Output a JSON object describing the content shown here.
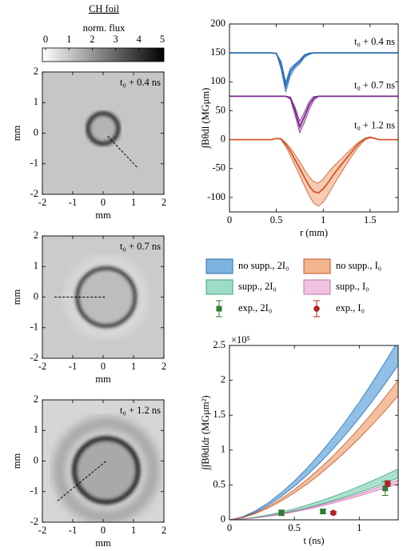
{
  "chart_data": [
    {
      "type": "colorbar",
      "title": "CH foil",
      "label": "norm. flux",
      "lim": [
        0,
        5
      ],
      "ticks": [
        0,
        1,
        2,
        3,
        4,
        5
      ]
    },
    {
      "type": "image",
      "xlim": [
        -2,
        2
      ],
      "ylim": [
        -2,
        2
      ],
      "xticks": [
        -2,
        -1,
        0,
        1,
        2
      ],
      "yticks": [
        -2,
        -1,
        0,
        1,
        2
      ],
      "xlabel": "mm",
      "ylabel": "mm",
      "annotation": "t₀ + 0.4 ns"
    },
    {
      "type": "image",
      "xlim": [
        -2,
        2
      ],
      "ylim": [
        -2,
        2
      ],
      "xticks": [
        -2,
        -1,
        0,
        1,
        2
      ],
      "yticks": [
        -2,
        -1,
        0,
        1,
        2
      ],
      "xlabel": "mm",
      "ylabel": "mm",
      "annotation": "t₀ + 0.7 ns"
    },
    {
      "type": "image",
      "xlim": [
        -2,
        2
      ],
      "ylim": [
        -2,
        2
      ],
      "xticks": [
        -2,
        -1,
        0,
        1,
        2
      ],
      "yticks": [
        -2,
        -1,
        0,
        1,
        2
      ],
      "xlabel": "mm",
      "ylabel": "mm",
      "annotation": "t₀ + 1.2 ns"
    },
    {
      "type": "line",
      "xlabel": "r (mm)",
      "ylabel": "∫Bθdl (MGμm)",
      "xlim": [
        0,
        1.8
      ],
      "ylim": [
        -125,
        200
      ],
      "xticks": [
        0,
        0.5,
        1,
        1.5
      ],
      "yticks": [
        -100,
        -50,
        0,
        50,
        100,
        150,
        200
      ],
      "x": [
        0,
        0.05,
        0.1,
        0.15,
        0.2,
        0.25,
        0.3,
        0.35,
        0.4,
        0.45,
        0.5,
        0.55,
        0.6,
        0.65,
        0.7,
        0.75,
        0.8,
        0.85,
        0.9,
        0.95,
        1,
        1.05,
        1.1,
        1.15,
        1.2,
        1.25,
        1.3,
        1.35,
        1.4,
        1.45,
        1.5,
        1.55,
        1.6,
        1.65,
        1.7,
        1.75,
        1.8
      ],
      "series": [
        {
          "name": "t₀ + 0.4 ns",
          "color": "#2a6db5",
          "band_color": "#9cc3e6",
          "values": [
            150,
            150,
            150,
            150,
            150,
            150,
            150,
            150,
            150,
            150,
            149,
            130,
            92,
            118,
            128,
            135,
            145,
            149,
            150,
            150,
            150,
            150,
            150,
            150,
            150,
            150,
            150,
            150,
            150,
            150,
            150,
            150,
            150,
            150,
            150,
            150,
            150
          ],
          "lower": [
            150,
            150,
            150,
            150,
            150,
            150,
            150,
            150,
            150,
            150,
            149,
            122,
            82,
            110,
            124,
            131,
            142,
            147,
            150,
            150,
            150,
            150,
            150,
            150,
            150,
            150,
            150,
            150,
            150,
            150,
            150,
            150,
            150,
            150,
            150,
            150,
            150
          ],
          "upper": [
            150,
            150,
            150,
            150,
            150,
            150,
            150,
            150,
            150,
            150,
            149,
            136,
            100,
            124,
            131,
            138,
            147,
            150,
            150,
            150,
            150,
            150,
            150,
            150,
            150,
            150,
            150,
            150,
            150,
            150,
            150,
            150,
            150,
            150,
            150,
            150,
            150
          ]
        },
        {
          "name": "t₀ + 0.7 ns",
          "color": "#7a2a8c",
          "band_color": "#e0b5dc",
          "values": [
            75,
            75,
            75,
            75,
            75,
            75,
            75,
            75,
            75,
            75,
            75,
            75,
            75,
            72,
            50,
            22,
            40,
            60,
            72,
            75,
            75,
            75,
            75,
            75,
            75,
            75,
            75,
            75,
            75,
            75,
            75,
            75,
            75,
            75,
            75,
            75,
            75
          ],
          "lower": [
            75,
            75,
            75,
            75,
            75,
            75,
            75,
            75,
            75,
            75,
            75,
            75,
            75,
            70,
            42,
            12,
            30,
            52,
            68,
            75,
            75,
            75,
            75,
            75,
            75,
            75,
            75,
            75,
            75,
            75,
            75,
            75,
            75,
            75,
            75,
            75,
            75
          ],
          "upper": [
            75,
            75,
            75,
            75,
            75,
            75,
            75,
            75,
            75,
            75,
            75,
            75,
            75,
            74,
            56,
            32,
            48,
            66,
            75,
            75,
            75,
            75,
            75,
            75,
            75,
            75,
            75,
            75,
            75,
            75,
            75,
            75,
            75,
            75,
            75,
            75,
            75
          ]
        },
        {
          "name": "t₀ + 1.2 ns",
          "color": "#d2572b",
          "band_color": "#f4c2a4",
          "values": [
            0,
            0,
            0,
            0,
            0,
            0,
            0,
            0,
            0,
            0,
            2,
            1,
            -8,
            -20,
            -35,
            -50,
            -65,
            -80,
            -90,
            -92,
            -85,
            -75,
            -63,
            -52,
            -42,
            -32,
            -22,
            -12,
            -4,
            2,
            4,
            2,
            0,
            0,
            0,
            0,
            0
          ],
          "lower": [
            0,
            0,
            0,
            0,
            0,
            0,
            0,
            0,
            0,
            0,
            2,
            0,
            -12,
            -28,
            -45,
            -62,
            -80,
            -97,
            -110,
            -115,
            -108,
            -96,
            -82,
            -68,
            -55,
            -42,
            -30,
            -18,
            -8,
            0,
            3,
            2,
            0,
            0,
            0,
            0,
            0
          ],
          "upper": [
            0,
            0,
            0,
            0,
            0,
            0,
            0,
            0,
            0,
            0,
            2,
            2,
            -5,
            -14,
            -26,
            -38,
            -52,
            -64,
            -73,
            -75,
            -68,
            -58,
            -48,
            -40,
            -32,
            -24,
            -16,
            -8,
            -2,
            3,
            5,
            3,
            0,
            0,
            0,
            0,
            0
          ]
        }
      ]
    },
    {
      "type": "band",
      "xlabel": "t (ns)",
      "ylabel": "∫∫Bθdldr (MGμm²)",
      "exponent_label": "×10⁵",
      "xlim": [
        0,
        1.3
      ],
      "ylim": [
        0,
        2.5
      ],
      "xticks": [
        0,
        0.5,
        1
      ],
      "yticks": [
        0,
        0.5,
        1,
        1.5,
        2,
        2.5
      ],
      "x": [
        0,
        0.1,
        0.2,
        0.3,
        0.4,
        0.5,
        0.6,
        0.7,
        0.8,
        0.9,
        1.0,
        1.1,
        1.2,
        1.3
      ],
      "series": [
        {
          "name": "no supp., 2I₀",
          "color": "#2a6db5",
          "band_color": "#7db5e0",
          "lower": [
            0,
            0.037,
            0.111,
            0.212,
            0.337,
            0.481,
            0.644,
            0.825,
            1.021,
            1.233,
            1.459,
            1.7,
            1.954,
            2.22
          ],
          "upper": [
            0,
            0.042,
            0.129,
            0.246,
            0.39,
            0.557,
            0.745,
            0.955,
            1.182,
            1.427,
            1.688,
            1.968,
            2.262,
            2.57
          ]
        },
        {
          "name": "no supp., I₀",
          "color": "#c0562a",
          "band_color": "#f3b58e",
          "lower": [
            0,
            0.029,
            0.089,
            0.17,
            0.27,
            0.386,
            0.516,
            0.661,
            0.819,
            0.988,
            1.169,
            1.363,
            1.566,
            1.78
          ],
          "upper": [
            0,
            0.033,
            0.1,
            0.191,
            0.303,
            0.434,
            0.58,
            0.743,
            0.92,
            1.111,
            1.314,
            1.531,
            1.76,
            2.0
          ]
        },
        {
          "name": "supp., 2I₀",
          "color": "#3aa57e",
          "band_color": "#9fdcc6",
          "lower": [
            0,
            0.01,
            0.03,
            0.057,
            0.091,
            0.13,
            0.174,
            0.223,
            0.276,
            0.333,
            0.394,
            0.459,
            0.528,
            0.6
          ],
          "upper": [
            0,
            0.012,
            0.037,
            0.07,
            0.111,
            0.158,
            0.212,
            0.271,
            0.336,
            0.405,
            0.48,
            0.559,
            0.642,
            0.73
          ]
        },
        {
          "name": "supp., I₀",
          "color": "#c575b1",
          "band_color": "#f0c2e2",
          "lower": [
            0,
            0.009,
            0.026,
            0.05,
            0.079,
            0.113,
            0.151,
            0.193,
            0.239,
            0.289,
            0.342,
            0.398,
            0.458,
            0.52
          ],
          "upper": [
            0,
            0.009,
            0.029,
            0.055,
            0.086,
            0.124,
            0.165,
            0.212,
            0.262,
            0.317,
            0.374,
            0.436,
            0.502,
            0.57
          ]
        }
      ],
      "points": [
        {
          "name": "exp., 2I₀",
          "color": "#2e7d32",
          "marker": "square",
          "x": [
            0.4,
            0.72,
            1.2
          ],
          "values": [
            0.1,
            0.12,
            0.45
          ],
          "errors": [
            0.04,
            0.03,
            0.1
          ]
        },
        {
          "name": "exp., I₀",
          "color": "#b22222",
          "marker": "circle",
          "x": [
            0.8,
            1.22
          ],
          "values": [
            0.1,
            0.52
          ],
          "errors": [
            0.02,
            0.04
          ]
        }
      ]
    }
  ]
}
